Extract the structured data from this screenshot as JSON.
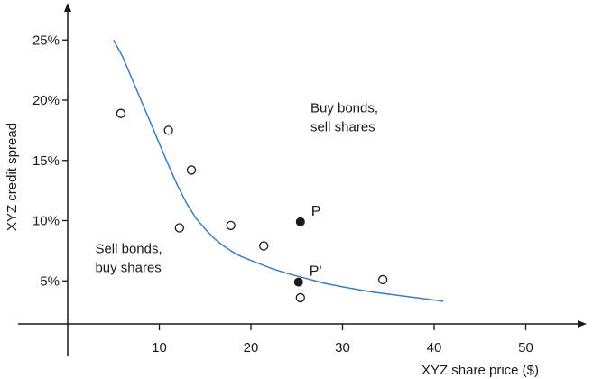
{
  "chart_data": {
    "type": "scatter",
    "xlabel": "XYZ share price ($)",
    "ylabel": "XYZ  credit spread",
    "xlim": [
      -0.5,
      56
    ],
    "ylim": [
      -0.9,
      27
    ],
    "x_ticks": [
      10,
      20,
      30,
      40,
      50
    ],
    "x_tick_labels": [
      "10",
      "20",
      "30",
      "40",
      "50"
    ],
    "y_ticks": [
      5,
      10,
      15,
      20,
      25
    ],
    "y_tick_labels": [
      "5%",
      "10%",
      "15%",
      "20%",
      "25%"
    ],
    "grid": false,
    "colors": {
      "curve": "#3b7bbf",
      "points": "#1a1a1a"
    },
    "curve": {
      "x": [
        5,
        6,
        7,
        8,
        9,
        10,
        11,
        12,
        13,
        14,
        15,
        16,
        17,
        18,
        19,
        20,
        22,
        24,
        25.5,
        28,
        30,
        33,
        36,
        38,
        41
      ],
      "y": [
        25,
        23.6,
        21.8,
        20.0,
        18.2,
        16.4,
        14.6,
        12.9,
        11.4,
        10.2,
        9.3,
        8.5,
        7.9,
        7.4,
        7.0,
        6.7,
        6.1,
        5.6,
        5.3,
        4.8,
        4.5,
        4.1,
        3.8,
        3.6,
        3.3
      ]
    },
    "open_points": [
      {
        "x": 5.8,
        "y": 18.9
      },
      {
        "x": 11.0,
        "y": 17.5
      },
      {
        "x": 13.5,
        "y": 14.2
      },
      {
        "x": 12.2,
        "y": 9.4
      },
      {
        "x": 17.8,
        "y": 9.6
      },
      {
        "x": 21.4,
        "y": 7.9
      },
      {
        "x": 25.4,
        "y": 3.6
      },
      {
        "x": 34.4,
        "y": 5.1
      }
    ],
    "filled_points": [
      {
        "x": 25.4,
        "y": 9.9,
        "label": "P"
      },
      {
        "x": 25.2,
        "y": 4.9,
        "label": "P'"
      }
    ],
    "annotations": [
      {
        "lines": [
          "Buy bonds,",
          "sell shares"
        ],
        "x": 26.5,
        "y": 19
      },
      {
        "lines": [
          "Sell bonds,",
          "buy shares"
        ],
        "x": 3,
        "y": 7.3
      }
    ]
  }
}
